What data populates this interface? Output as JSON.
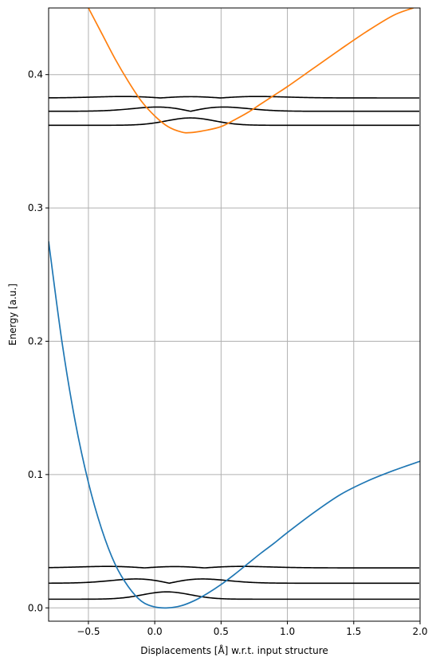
{
  "chart_data": {
    "type": "line",
    "xlabel": "Displacements [Å] w.r.t. input structure",
    "ylabel": "Energy [a.u.]",
    "xlim": [
      -0.8,
      2.0
    ],
    "ylim": [
      -0.01,
      0.45
    ],
    "grid": true,
    "xticks": [
      -0.5,
      0.0,
      0.5,
      1.0,
      1.5,
      2.0
    ],
    "xtick_labels": [
      "−0.5",
      "0.0",
      "0.5",
      "1.0",
      "1.5",
      "2.0"
    ],
    "yticks": [
      0.0,
      0.1,
      0.2,
      0.3,
      0.4
    ],
    "ytick_labels": [
      "0.0",
      "0.1",
      "0.2",
      "0.3",
      "0.4"
    ],
    "series": [
      {
        "color": "#1f77b4",
        "description": "ground-state potential energy curve",
        "x": [
          -0.8,
          -0.7,
          -0.6,
          -0.5,
          -0.4,
          -0.3,
          -0.2,
          -0.1,
          0.0,
          0.1,
          0.2,
          0.3,
          0.4,
          0.5,
          0.6,
          0.7,
          0.8,
          0.9,
          1.0,
          1.2,
          1.4,
          1.6,
          1.8,
          2.0
        ],
        "y": [
          0.275,
          0.2,
          0.14,
          0.094,
          0.059,
          0.033,
          0.016,
          0.005,
          0.0007,
          0.0,
          0.0016,
          0.0055,
          0.011,
          0.0175,
          0.025,
          0.033,
          0.041,
          0.0485,
          0.0565,
          0.0715,
          0.085,
          0.095,
          0.103,
          0.11
        ]
      },
      {
        "color": "#ff7f0e",
        "description": "excited-state potential energy curve",
        "x": [
          -0.5,
          -0.4,
          -0.3,
          -0.2,
          -0.1,
          0.0,
          0.1,
          0.2,
          0.27,
          0.4,
          0.5,
          0.6,
          0.7,
          0.8,
          0.9,
          1.0,
          1.2,
          1.4,
          1.6,
          1.8,
          1.95
        ],
        "y": [
          0.45,
          0.431,
          0.412,
          0.395,
          0.38,
          0.369,
          0.361,
          0.357,
          0.3565,
          0.3585,
          0.361,
          0.366,
          0.3715,
          0.378,
          0.3845,
          0.391,
          0.405,
          0.419,
          0.4325,
          0.4445,
          0.45
        ]
      }
    ],
    "vibrational_levels": [
      {
        "energy": 0.0065,
        "center": 0.09,
        "nodes": 0,
        "amplitude": 0.0055,
        "width": 0.18
      },
      {
        "energy": 0.0185,
        "center": 0.11,
        "nodes": 1,
        "amplitude": 0.0045,
        "width": 0.25
      },
      {
        "energy": 0.03,
        "center": 0.15,
        "nodes": 2,
        "amplitude": 0.0035,
        "width": 0.32
      },
      {
        "energy": 0.362,
        "center": 0.27,
        "nodes": 0,
        "amplitude": 0.0055,
        "width": 0.18
      },
      {
        "energy": 0.3725,
        "center": 0.27,
        "nodes": 1,
        "amplitude": 0.0045,
        "width": 0.25
      },
      {
        "energy": 0.3825,
        "center": 0.27,
        "nodes": 2,
        "amplitude": 0.0035,
        "width": 0.32
      }
    ],
    "levels_color": "#000000",
    "grid_color": "#b0b0b0"
  }
}
